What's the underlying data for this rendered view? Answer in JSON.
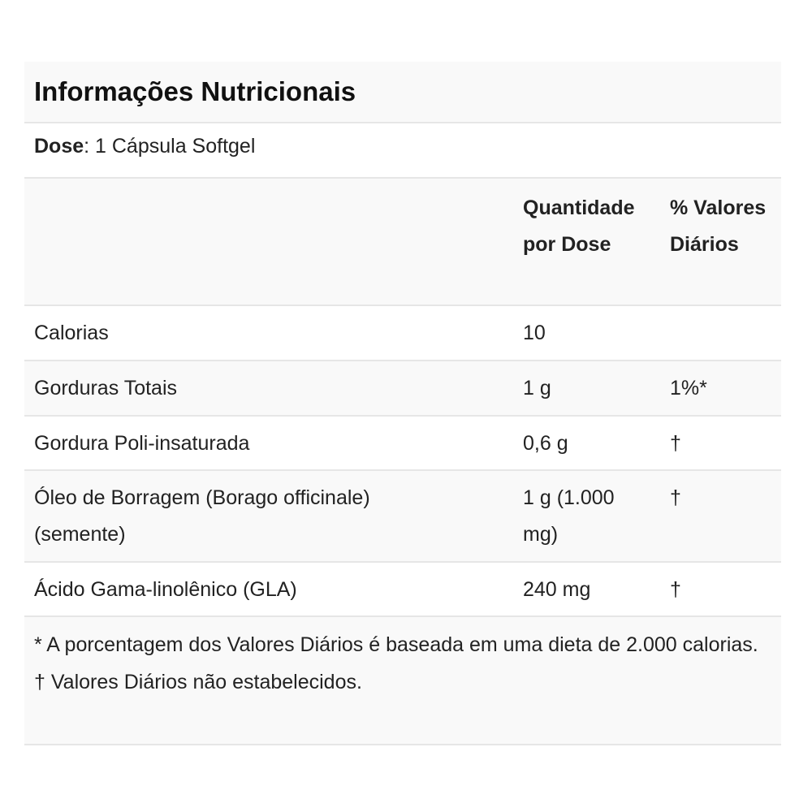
{
  "title": "Informações Nutricionais",
  "dose": {
    "label": "Dose",
    "value": ": 1 Cápsula Softgel"
  },
  "header": {
    "col1": "",
    "col2": "Quantidade por Dose",
    "col3": "% Valores Diários"
  },
  "rows": [
    {
      "name": "Calorias",
      "amount": "10",
      "dv": ""
    },
    {
      "name": "Gorduras Totais",
      "amount": "1 g",
      "dv": "1%*"
    },
    {
      "name": "Gordura Poli-insaturada",
      "amount": "0,6 g",
      "dv": "†"
    },
    {
      "name": "Óleo de Borragem (Borago officinale) (semente)",
      "amount": "1 g (1.000 mg)",
      "dv": "†"
    },
    {
      "name": "Ácido Gama-linolênico (GLA)",
      "amount": "240 mg",
      "dv": "†"
    }
  ],
  "footnotes": [
    "* A porcentagem dos Valores Diários é baseada em uma dieta de 2.000 calorias.",
    "† Valores Diários não estabelecidos."
  ],
  "colors": {
    "stripe": "#f9f9f9",
    "border": "#e6e6e6",
    "text": "#222222"
  }
}
